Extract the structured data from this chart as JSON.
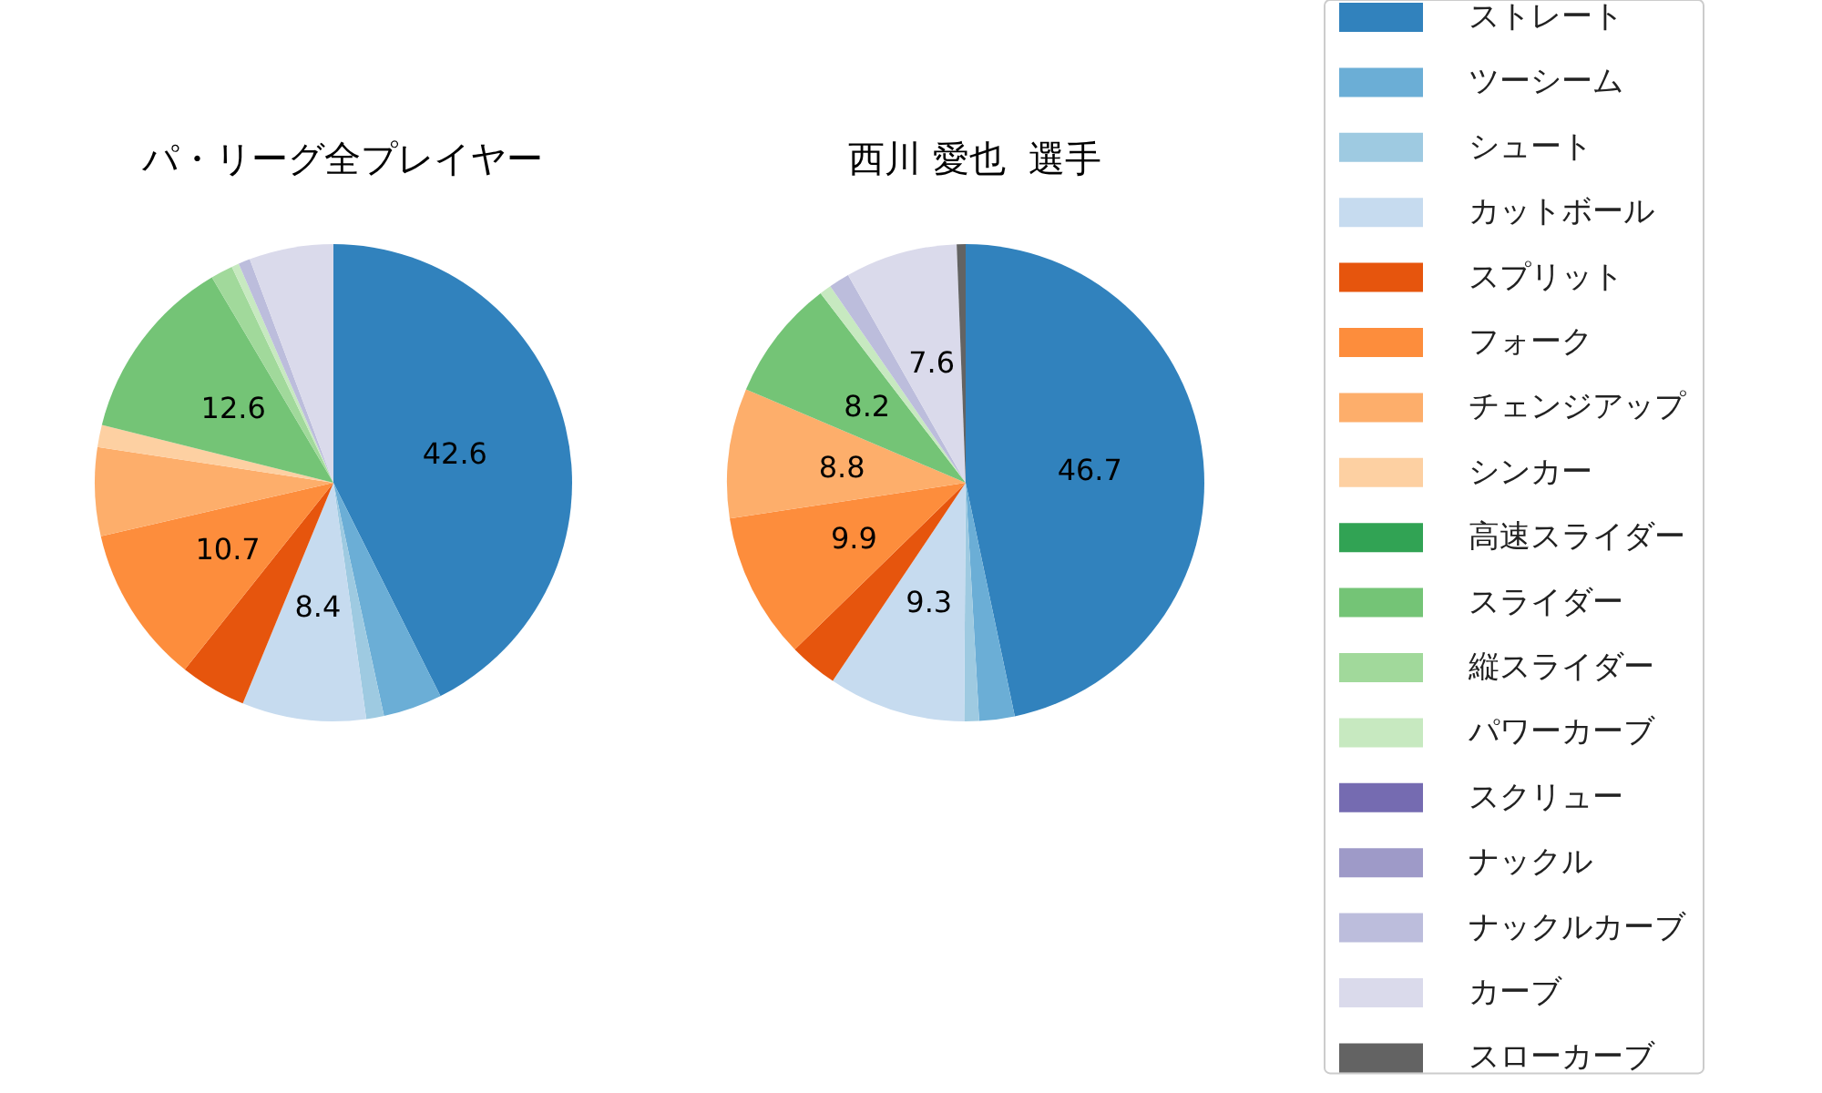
{
  "chart_data": {
    "type": "pie",
    "legend": "right",
    "categories": [
      "ストレート",
      "ツーシーム",
      "シュート",
      "カットボール",
      "スプリット",
      "フォーク",
      "チェンジアップ",
      "シンカー",
      "高速スライダー",
      "スライダー",
      "縦スライダー",
      "パワーカーブ",
      "スクリュー",
      "ナックル",
      "ナックルカーブ",
      "カーブ",
      "スローカーブ"
    ],
    "colors": [
      "#3182bd",
      "#6baed6",
      "#9ecae1",
      "#c6dbef",
      "#e6550d",
      "#fd8d3c",
      "#fdae6b",
      "#fdd0a2",
      "#31a354",
      "#74c476",
      "#a1d99b",
      "#c7e9c0",
      "#756bb1",
      "#9e9ac8",
      "#bcbddc",
      "#dadaeb",
      "#636363"
    ],
    "series": [
      {
        "name": "パ・リーグ全プレイヤー",
        "values": [
          42.6,
          4.0,
          1.2,
          8.4,
          4.5,
          10.7,
          6.0,
          1.5,
          0,
          12.6,
          1.5,
          0.5,
          0,
          0,
          0.8,
          5.7,
          0
        ],
        "value_labels": [
          "42.6",
          null,
          null,
          "8.4",
          null,
          "10.7",
          null,
          null,
          null,
          "12.6",
          null,
          null,
          null,
          null,
          null,
          null,
          null
        ]
      },
      {
        "name": "西川 愛也  選手",
        "values": [
          46.7,
          2.4,
          1.0,
          9.3,
          3.3,
          9.9,
          8.8,
          0,
          0,
          8.2,
          0,
          0.8,
          0,
          0,
          1.4,
          7.6,
          0.6
        ],
        "value_labels": [
          "46.7",
          null,
          null,
          "9.3",
          null,
          "9.9",
          "8.8",
          null,
          null,
          "8.2",
          null,
          null,
          null,
          null,
          null,
          "7.6",
          null
        ]
      }
    ]
  }
}
